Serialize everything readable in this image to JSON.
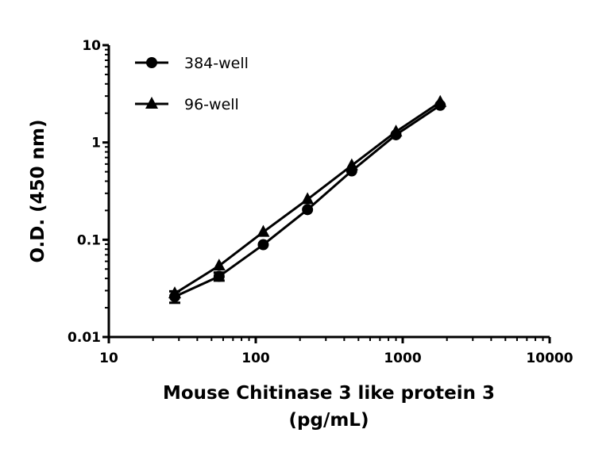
{
  "chart_data": {
    "type": "line",
    "title": "",
    "xlabel": "Mouse Chitinase 3 like protein 3",
    "xlabel_line2": "(pg/mL)",
    "ylabel": "O.D. (450 nm)",
    "xscale": "log",
    "yscale": "log",
    "xlim": [
      10,
      10000
    ],
    "ylim": [
      0.01,
      10
    ],
    "xticks": [
      "10",
      "100",
      "1000",
      "10000"
    ],
    "yticks": [
      "0.01",
      "0.1",
      "1",
      "10"
    ],
    "grid": false,
    "legend_position": "top-left",
    "x": [
      28.1,
      56.3,
      112.5,
      225,
      450,
      900,
      1800
    ],
    "series": [
      {
        "name": "384-well",
        "marker": "circle",
        "color": "#000000",
        "values": [
          0.026,
          0.042,
          0.089,
          0.204,
          0.51,
          1.2,
          2.41
        ]
      },
      {
        "name": "96-well",
        "marker": "triangle",
        "color": "#000000",
        "values": [
          0.028,
          0.054,
          0.12,
          0.26,
          0.58,
          1.29,
          2.6
        ]
      }
    ]
  }
}
